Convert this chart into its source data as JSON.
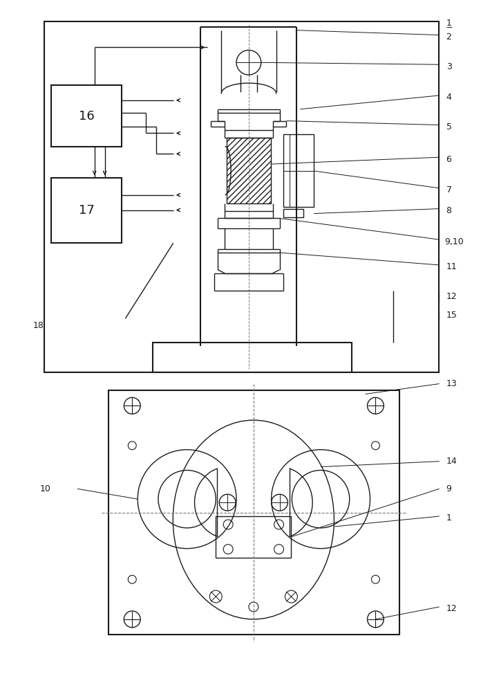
{
  "bg_color": "#ffffff",
  "line_color": "#1a1a1a",
  "fig_width": 6.96,
  "fig_height": 10.0,
  "lw": 1.0,
  "lw2": 1.5
}
